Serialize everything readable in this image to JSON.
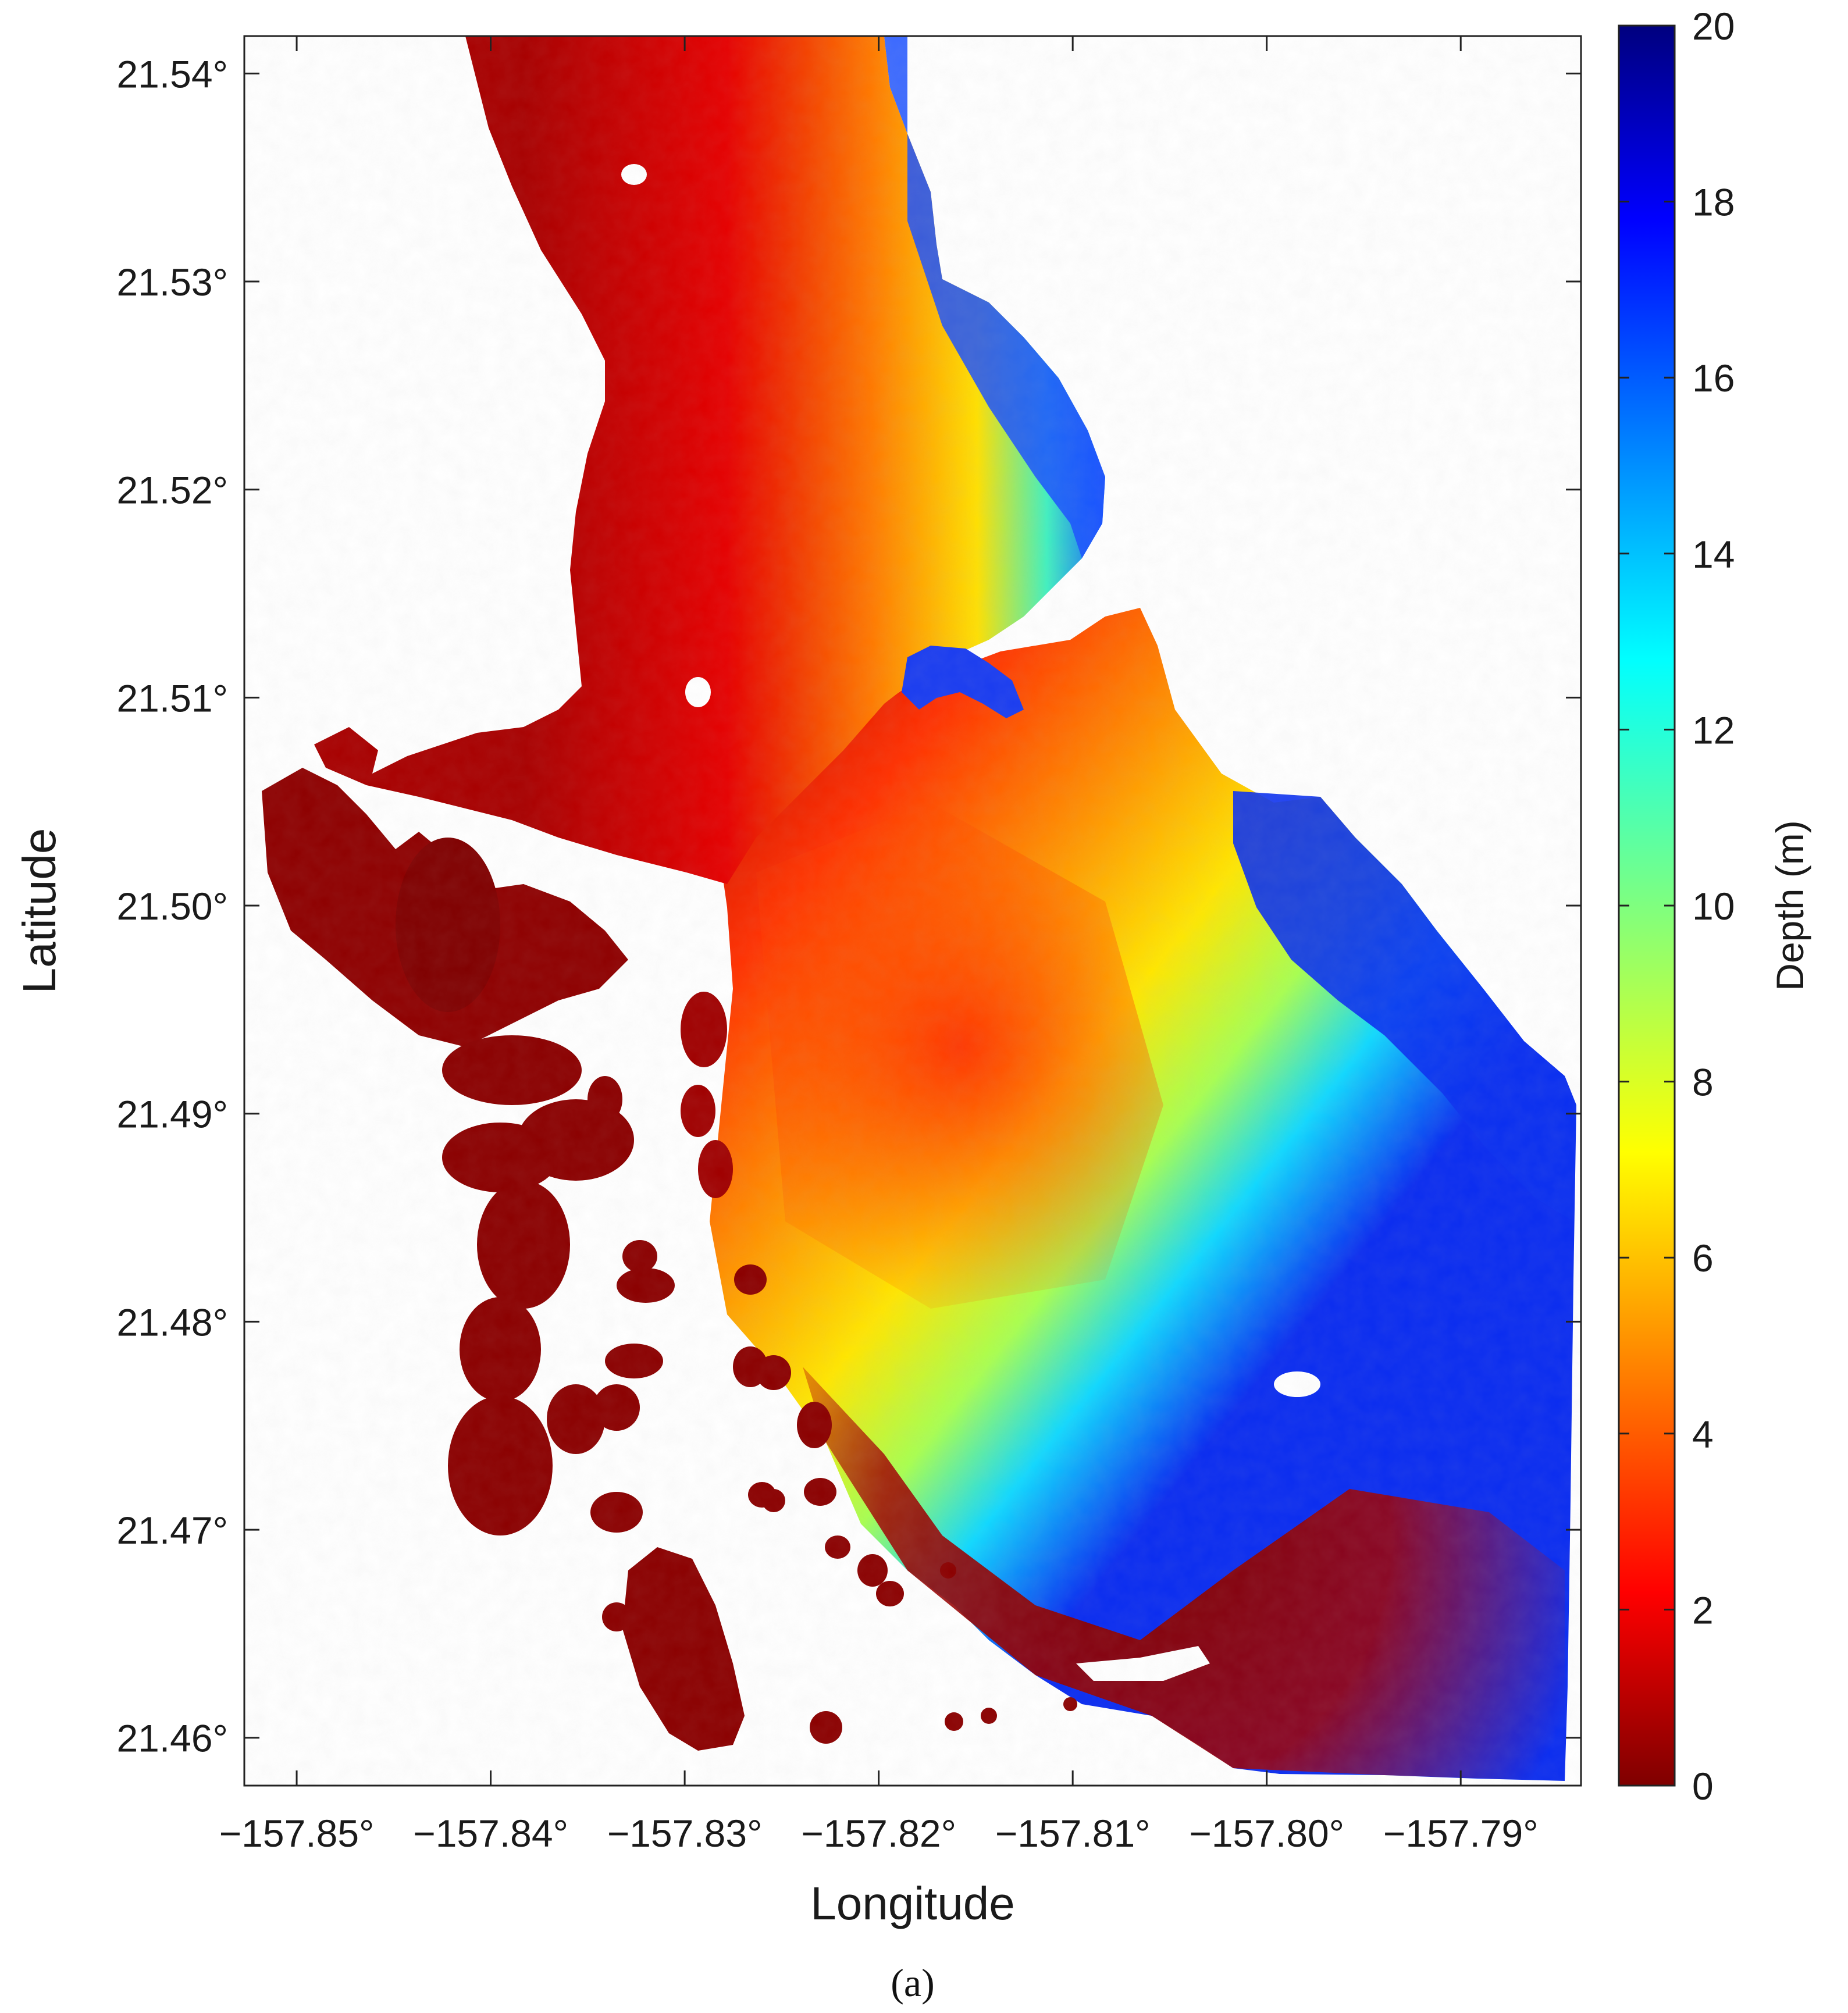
{
  "chart_data": {
    "type": "heatmap",
    "title": "",
    "xlabel": "Longitude",
    "ylabel": "Latitude",
    "xlim": [
      -157.8527,
      -157.7838
    ],
    "ylim": [
      21.4577,
      21.5418
    ],
    "xticks": [
      {
        "value": -157.85,
        "label": "−157.85°"
      },
      {
        "value": -157.84,
        "label": "−157.84°"
      },
      {
        "value": -157.83,
        "label": "−157.83°"
      },
      {
        "value": -157.82,
        "label": "−157.82°"
      },
      {
        "value": -157.81,
        "label": "−157.81°"
      },
      {
        "value": -157.8,
        "label": "−157.80°"
      },
      {
        "value": -157.79,
        "label": "−157.79°"
      }
    ],
    "yticks": [
      {
        "value": 21.46,
        "label": "21.46°"
      },
      {
        "value": 21.47,
        "label": "21.47°"
      },
      {
        "value": 21.48,
        "label": "21.48°"
      },
      {
        "value": 21.49,
        "label": "21.49°"
      },
      {
        "value": 21.5,
        "label": "21.50°"
      },
      {
        "value": 21.51,
        "label": "21.51°"
      },
      {
        "value": 21.52,
        "label": "21.52°"
      },
      {
        "value": 21.53,
        "label": "21.53°"
      },
      {
        "value": 21.54,
        "label": "21.54°"
      }
    ],
    "colorbar": {
      "label": "Depth (m)",
      "colormap": "jet",
      "range": [
        0,
        20
      ],
      "reversed": true,
      "ticks": [
        0,
        2,
        4,
        6,
        8,
        10,
        12,
        14,
        16,
        18,
        20
      ]
    },
    "caption": "(a)",
    "no_data_color": "#ffffff"
  }
}
